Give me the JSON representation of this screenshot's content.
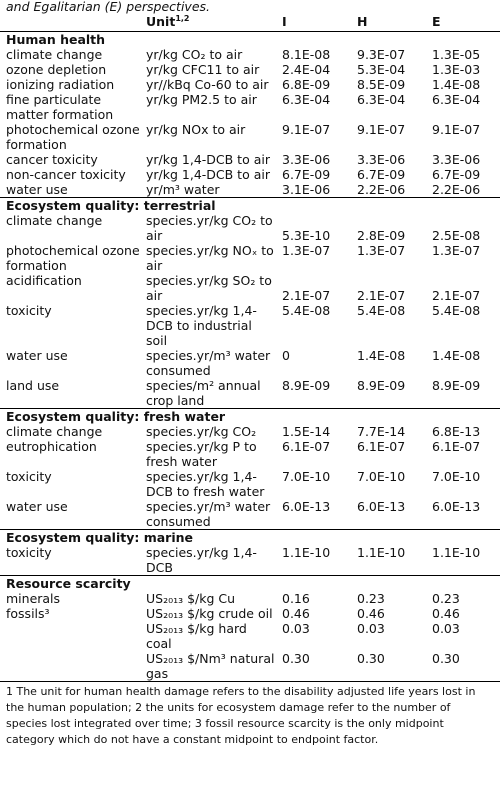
{
  "caption": "and Egalitarian (E) perspectives.",
  "headers": {
    "category": "",
    "unit": "Unit",
    "unit_sup": "1,2",
    "i": "I",
    "h": "H",
    "e": "E"
  },
  "sections": [
    {
      "title": "Human health",
      "rows": [
        {
          "cat": "climate change",
          "unit": "yr/kg CO₂ to air",
          "i": "8.1E-08",
          "h": "9.3E-07",
          "e": "1.3E-05"
        },
        {
          "cat": "ozone depletion",
          "unit": "yr/kg CFC11 to air",
          "i": "2.4E-04",
          "h": "5.3E-04",
          "e": "1.3E-03"
        },
        {
          "cat": "ionizing radiation",
          "unit": "yr//kBq Co-60 to air",
          "i": "6.8E-09",
          "h": "8.5E-09",
          "e": "1.4E-08"
        },
        {
          "cat": "fine particulate matter formation",
          "unit": "yr/kg PM2.5 to air",
          "i": "6.3E-04",
          "h": "6.3E-04",
          "e": "6.3E-04"
        },
        {
          "cat": "photochemical ozone formation",
          "unit": "yr/kg NOx to air",
          "i": "9.1E-07",
          "h": "9.1E-07",
          "e": "9.1E-07"
        },
        {
          "cat": "cancer toxicity",
          "unit": "yr/kg 1,4-DCB to air",
          "i": "3.3E-06",
          "h": "3.3E-06",
          "e": "3.3E-06"
        },
        {
          "cat": "non-cancer toxicity",
          "unit": "yr/kg 1,4-DCB to air",
          "i": "6.7E-09",
          "h": "6.7E-09",
          "e": "6.7E-09"
        },
        {
          "cat": "water use",
          "unit": "yr/m³ water",
          "i": "3.1E-06",
          "h": "2.2E-06",
          "e": "2.2E-06"
        }
      ]
    },
    {
      "title": "Ecosystem quality: terrestrial",
      "rows": [
        {
          "cat": "climate change",
          "unit": "species.yr/kg CO₂ to air",
          "i": "5.3E-10",
          "h": "2.8E-09",
          "e": "2.5E-08",
          "valuesLow": true
        },
        {
          "cat": "photochemical ozone formation",
          "unit": "species.yr/kg NOₓ to air",
          "i": "1.3E-07",
          "h": "1.3E-07",
          "e": "1.3E-07"
        },
        {
          "cat": "acidification",
          "unit": "species.yr/kg SO₂ to air",
          "i": "2.1E-07",
          "h": "2.1E-07",
          "e": "2.1E-07",
          "valuesLow": true
        },
        {
          "cat": "toxicity",
          "unit": "species.yr/kg 1,4-DCB to industrial soil",
          "i": "5.4E-08",
          "h": "5.4E-08",
          "e": "5.4E-08"
        },
        {
          "cat": "water use",
          "unit": "species.yr/m³ water consumed",
          "i": "0",
          "h": "1.4E-08",
          "e": "1.4E-08"
        },
        {
          "cat": "land use",
          "unit": "species/m² annual crop land",
          "i": "8.9E-09",
          "h": "8.9E-09",
          "e": "8.9E-09"
        }
      ]
    },
    {
      "title": "Ecosystem quality: fresh water",
      "rows": [
        {
          "cat": "climate change",
          "unit": "species.yr/kg CO₂",
          "i": "1.5E-14",
          "h": "7.7E-14",
          "e": "6.8E-13"
        },
        {
          "cat": "eutrophication",
          "unit": "species.yr/kg P to fresh water",
          "i": "6.1E-07",
          "h": "6.1E-07",
          "e": "6.1E-07"
        },
        {
          "cat": "toxicity",
          "unit": "species.yr/kg 1,4-DCB to fresh water",
          "i": "7.0E-10",
          "h": "7.0E-10",
          "e": "7.0E-10"
        },
        {
          "cat": "water use",
          "unit": "species.yr/m³ water consumed",
          "i": "6.0E-13",
          "h": "6.0E-13",
          "e": "6.0E-13"
        }
      ]
    },
    {
      "title": "Ecosystem quality: marine",
      "rows": [
        {
          "cat": "toxicity",
          "unit": "species.yr/kg 1,4-DCB",
          "i": "1.1E-10",
          "h": "1.1E-10",
          "e": "1.1E-10"
        }
      ]
    },
    {
      "title": "Resource scarcity",
      "rows": [
        {
          "cat": "minerals",
          "unit": "US₂₀₁₃ $/kg Cu",
          "i": "0.16",
          "h": "0.23",
          "e": "0.23"
        },
        {
          "cat": "fossils³",
          "unit": "US₂₀₁₃ $/kg crude oil",
          "i": "0.46",
          "h": "0.46",
          "e": "0.46"
        },
        {
          "cat": "",
          "unit": "US₂₀₁₃ $/kg hard coal",
          "i": "0.03",
          "h": "0.03",
          "e": "0.03"
        },
        {
          "cat": "",
          "unit": "US₂₀₁₃ $/Nm³ natural gas",
          "i": "0.30",
          "h": "0.30",
          "e": "0.30"
        }
      ]
    }
  ],
  "footnote": "1 The unit for human health damage refers to the disability adjusted life years lost in the human population; 2 the units for ecosystem damage refer to the number of species lost integrated over time; 3 fossil resource scarcity is the only midpoint category which do not have a constant midpoint to endpoint factor."
}
